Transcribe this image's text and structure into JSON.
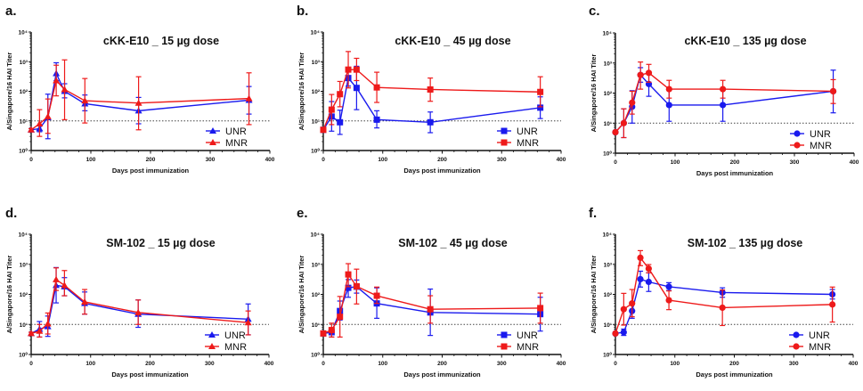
{
  "colors": {
    "UNR": "#1a1aee",
    "MNR": "#ee1a1a",
    "axis": "#111111",
    "threshold": "#444444"
  },
  "chart_data": [
    {
      "type": "line",
      "letter": "a.",
      "title": "cKK-E10 _ 15 µg dose",
      "xlabel": "Days post immunization",
      "ylabel": "A/Singapore/16 HAI Titer",
      "xlim": [
        0,
        400
      ],
      "xticks": [
        "0",
        "100",
        "200",
        "300",
        "400"
      ],
      "yscale": "log",
      "ylim": [
        1,
        10000
      ],
      "yticks": [
        "10⁰",
        "10¹",
        "10²",
        "10³",
        "10⁴"
      ],
      "threshold": 10,
      "marker": "triangle",
      "legend": "bottom-right",
      "x": [
        0,
        14,
        28,
        42,
        56,
        90,
        180,
        365
      ],
      "series": [
        {
          "name": "UNR",
          "values": [
            5,
            5.5,
            13,
            400,
            100,
            38,
            22,
            50
          ],
          "err_low": [
            4.5,
            4.3,
            2.5,
            230,
            60,
            22,
            8,
            17
          ],
          "err_high": [
            5.5,
            7,
            80,
            920,
            180,
            75,
            62,
            145
          ]
        },
        {
          "name": "MNR",
          "values": [
            5,
            8,
            14,
            230,
            115,
            48,
            40,
            57
          ],
          "err_low": [
            4.5,
            3,
            3.8,
            70,
            11,
            8.5,
            5,
            7.5
          ],
          "err_high": [
            5.5,
            24,
            55,
            760,
            1150,
            270,
            310,
            420
          ]
        }
      ]
    },
    {
      "type": "line",
      "letter": "b.",
      "title": "cKK-E10 _ 45 µg dose",
      "xlabel": "Days post immunization",
      "ylabel": "A/Singapore/16 HAI Titer",
      "xlim": [
        0,
        400
      ],
      "xticks": [
        "0",
        "100",
        "200",
        "300",
        "400"
      ],
      "yscale": "log",
      "ylim": [
        1,
        10000
      ],
      "yticks": [
        "10⁰",
        "10¹",
        "10²",
        "10³",
        "10⁴"
      ],
      "threshold": 10,
      "marker": "square",
      "legend": "bottom-right",
      "x": [
        0,
        14,
        28,
        42,
        56,
        90,
        180,
        365
      ],
      "series": [
        {
          "name": "UNR",
          "values": [
            5,
            14,
            9,
            280,
            130,
            11,
            9,
            28
          ],
          "err_low": [
            4.5,
            4.5,
            3.5,
            150,
            24,
            5.8,
            4,
            12
          ],
          "err_high": [
            5.5,
            45,
            23,
            600,
            700,
            22,
            20,
            65
          ]
        },
        {
          "name": "MNR",
          "values": [
            5,
            24,
            80,
            540,
            540,
            135,
            115,
            95
          ],
          "err_low": [
            4.5,
            7.5,
            30,
            130,
            230,
            42,
            46,
            30
          ],
          "err_high": [
            5.5,
            78,
            215,
            2200,
            1300,
            440,
            280,
            310
          ]
        }
      ]
    },
    {
      "type": "line",
      "letter": "c.",
      "title": "cKK-E10 _ 135 µg dose",
      "xlabel": "Days post immunization",
      "ylabel": "A/Singapore/16 HAI Titer",
      "xlim": [
        0,
        400
      ],
      "xticks": [
        "0",
        "100",
        "200",
        "300",
        "400"
      ],
      "yscale": "log",
      "ylim": [
        1,
        10000
      ],
      "yticks": [
        "10⁰",
        "10¹",
        "10²",
        "10³",
        "10⁴"
      ],
      "threshold": 10,
      "marker": "circle",
      "legend": "bottom-right",
      "x": [
        0,
        14,
        28,
        42,
        56,
        90,
        180,
        365
      ],
      "series": [
        {
          "name": "UNR",
          "values": [
            5,
            10,
            35,
            400,
            200,
            40,
            40,
            115
          ],
          "err_low": [
            4.5,
            3.3,
            10,
            230,
            78,
            11.5,
            11.5,
            22
          ],
          "err_high": [
            5.5,
            30,
            120,
            700,
            500,
            135,
            135,
            580
          ]
        },
        {
          "name": "MNR",
          "values": [
            5,
            10,
            48,
            400,
            470,
            135,
            135,
            115
          ],
          "err_low": [
            4.5,
            3.3,
            20,
            135,
            230,
            68,
            68,
            45
          ],
          "err_high": [
            5.5,
            30,
            115,
            1080,
            900,
            265,
            265,
            280
          ]
        }
      ]
    },
    {
      "type": "line",
      "letter": "d.",
      "title": "SM-102 _ 15 µg dose",
      "xlabel": "Days post immunization",
      "ylabel": "A/Singapore/16 HAI Titer",
      "xlim": [
        0,
        400
      ],
      "xticks": [
        "0",
        "100",
        "200",
        "300",
        "400"
      ],
      "yscale": "log",
      "ylim": [
        1,
        10000
      ],
      "yticks": [
        "10⁰",
        "10¹",
        "10²",
        "10³",
        "10⁴"
      ],
      "threshold": 10,
      "marker": "triangle",
      "legend": "bottom-right",
      "x": [
        0,
        14,
        28,
        42,
        56,
        90,
        180,
        365
      ],
      "series": [
        {
          "name": "UNR",
          "values": [
            5,
            7,
            8.5,
            200,
            180,
            50,
            22,
            15
          ],
          "err_low": [
            4.5,
            3.8,
            4,
            52,
            90,
            22,
            8,
            4.5
          ],
          "err_high": [
            5.5,
            12.5,
            19,
            780,
            360,
            120,
            65,
            48
          ]
        },
        {
          "name": "MNR",
          "values": [
            5,
            6,
            10.5,
            310,
            200,
            56,
            25,
            11.5
          ],
          "err_low": [
            4.5,
            3.8,
            4.8,
            135,
            90,
            22,
            10,
            4.5
          ],
          "err_high": [
            5.5,
            10,
            24,
            760,
            620,
            145,
            65,
            28
          ]
        }
      ]
    },
    {
      "type": "line",
      "letter": "e.",
      "title": "SM-102 _ 45 µg dose",
      "xlabel": "Days post immunization",
      "ylabel": "A/Singapore/16 HAI Titer",
      "xlim": [
        0,
        400
      ],
      "xticks": [
        "0",
        "100",
        "200",
        "300",
        "400"
      ],
      "yscale": "log",
      "ylim": [
        1,
        10000
      ],
      "yticks": [
        "10⁰",
        "10¹",
        "10²",
        "10³",
        "10⁴"
      ],
      "threshold": 10,
      "marker": "square",
      "legend": "bottom-right",
      "x": [
        0,
        14,
        28,
        42,
        56,
        90,
        180,
        365
      ],
      "series": [
        {
          "name": "UNR",
          "values": [
            5,
            5.5,
            28,
            165,
            180,
            50,
            25,
            22
          ],
          "err_low": [
            4.5,
            3.8,
            14,
            80,
            110,
            16,
            4.3,
            6
          ],
          "err_high": [
            5.5,
            7,
            60,
            310,
            300,
            165,
            150,
            80
          ]
        },
        {
          "name": "MNR",
          "values": [
            5,
            6.5,
            18,
            460,
            185,
            90,
            32,
            35
          ],
          "err_low": [
            4.5,
            3.8,
            3.8,
            180,
            48,
            50,
            11,
            11
          ],
          "err_high": [
            5.5,
            11,
            85,
            1050,
            690,
            175,
            90,
            110
          ]
        }
      ]
    },
    {
      "type": "line",
      "letter": "f.",
      "title": "SM-102 _ 135 µg dose",
      "xlabel": "Days post immunization",
      "ylabel": "A/Singapore/16 HAI Titer",
      "xlim": [
        0,
        400
      ],
      "xticks": [
        "0",
        "100",
        "200",
        "300",
        "400"
      ],
      "yscale": "log",
      "ylim": [
        1,
        10000
      ],
      "yticks": [
        "10⁰",
        "10¹",
        "10²",
        "10³",
        "10⁴"
      ],
      "threshold": 10,
      "marker": "circle",
      "legend": "bottom-right",
      "x": [
        0,
        14,
        28,
        42,
        56,
        90,
        180,
        365
      ],
      "series": [
        {
          "name": "UNR",
          "values": [
            5,
            5.5,
            28,
            320,
            260,
            180,
            115,
            100
          ],
          "err_low": [
            4.5,
            4.3,
            16,
            175,
            125,
            135,
            80,
            70
          ],
          "err_high": [
            5.5,
            7,
            55,
            590,
            520,
            245,
            165,
            145
          ]
        },
        {
          "name": "MNR",
          "values": [
            5,
            32,
            50,
            1650,
            720,
            64,
            36,
            46
          ],
          "err_low": [
            4.5,
            9.5,
            18,
            900,
            520,
            31,
            9.2,
            12
          ],
          "err_high": [
            5.5,
            108,
            145,
            2850,
            980,
            130,
            140,
            175
          ]
        }
      ]
    }
  ]
}
